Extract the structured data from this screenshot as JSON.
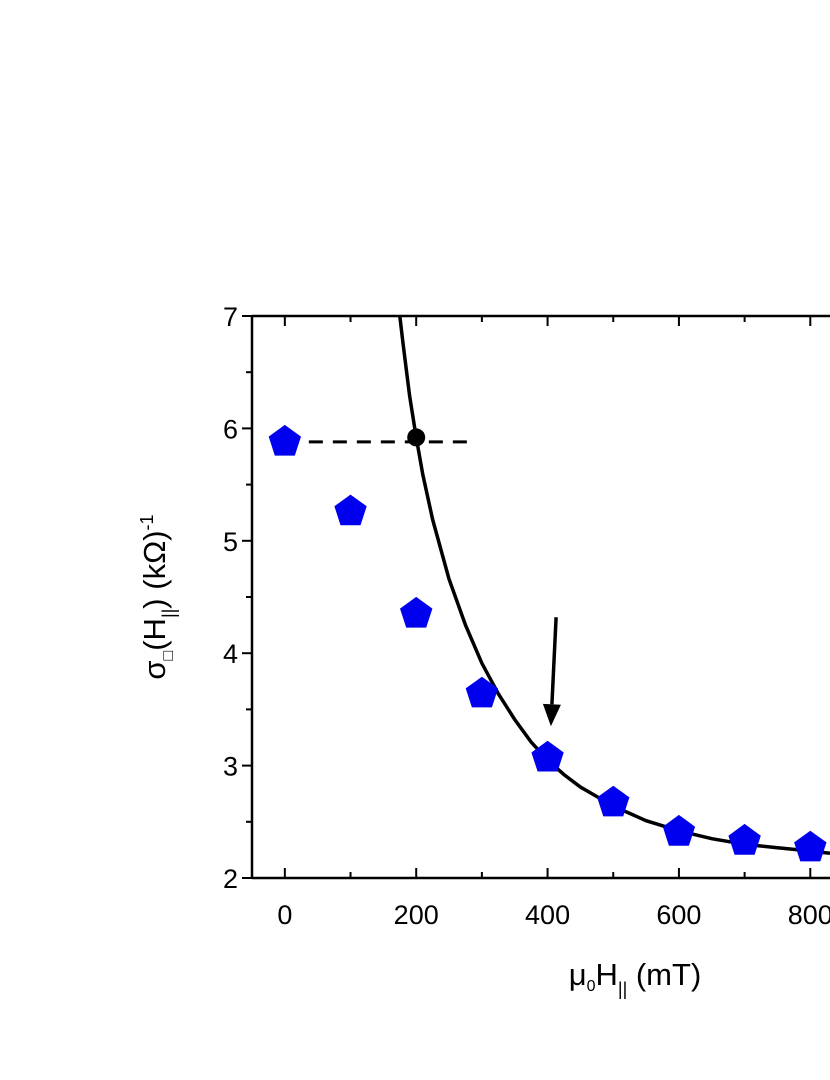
{
  "chart_data": {
    "type": "scatter",
    "title": "",
    "xlabel": {
      "base": "μ",
      "sub1": "0",
      "mid": "H",
      "sub2": "||",
      "unit": " (mT)"
    },
    "ylabel": {
      "base": "σ",
      "sub1": "□",
      "open": "(H",
      "sub2": "||",
      "close": ") (kΩ)",
      "sup": "-1"
    },
    "xlim": [
      -50,
      830
    ],
    "ylim": [
      2,
      7
    ],
    "x_ticks": [
      0,
      200,
      400,
      600,
      800
    ],
    "x_tick_labels": [
      "0",
      "200",
      "400",
      "600",
      "800"
    ],
    "y_ticks": [
      2,
      3,
      4,
      5,
      6,
      7
    ],
    "y_tick_labels": [
      "2",
      "3",
      "4",
      "5",
      "6",
      "7"
    ],
    "grid": false,
    "legend": "none",
    "series": [
      {
        "marker": "pentagon",
        "color": "#0000ee",
        "x": [
          0,
          100,
          200,
          300,
          400,
          500,
          600,
          700,
          800
        ],
        "y": [
          5.88,
          5.26,
          4.35,
          3.64,
          3.07,
          2.67,
          2.41,
          2.33,
          2.27
        ]
      }
    ],
    "fit_curve": {
      "color": "#000000",
      "style": "solid",
      "x": [
        175,
        180,
        190,
        200,
        210,
        225,
        250,
        275,
        300,
        325,
        350,
        375,
        400,
        425,
        450,
        500,
        550,
        600,
        650,
        700,
        750,
        800,
        830
      ],
      "y": [
        7.0,
        6.75,
        6.29,
        5.92,
        5.59,
        5.19,
        4.66,
        4.25,
        3.91,
        3.64,
        3.41,
        3.21,
        3.05,
        2.92,
        2.81,
        2.64,
        2.51,
        2.42,
        2.35,
        2.3,
        2.27,
        2.24,
        2.22
      ]
    },
    "reference_line": {
      "style": "dashed",
      "color": "#000000",
      "x": [
        0,
        285
      ],
      "y": 5.88
    },
    "highlight_point": {
      "x": 200,
      "y": 5.92,
      "color": "#000000"
    },
    "arrow": {
      "x_start": 413,
      "y_start": 4.32,
      "x_end": 405,
      "y_end": 3.35,
      "color": "#000000"
    }
  }
}
